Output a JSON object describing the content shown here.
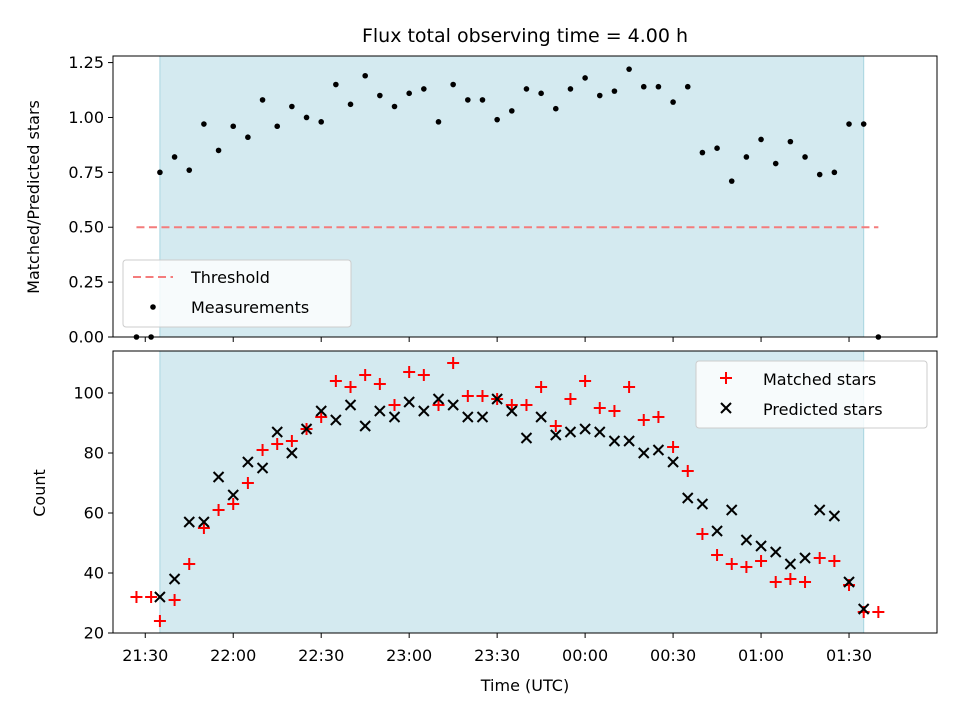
{
  "chart_data": [
    {
      "type": "scatter",
      "title": "Flux total observing time = 4.00 h",
      "xlabel": "",
      "ylabel": "Matched/Predicted stars",
      "x_type": "time (UTC)",
      "xlim": [
        "21:19",
        "02:00"
      ],
      "ylim": [
        0,
        1.28
      ],
      "yticks": [
        0.0,
        0.25,
        0.5,
        0.75,
        1.0,
        1.25
      ],
      "ytick_labels": [
        "0.00",
        "0.25",
        "0.50",
        "0.75",
        "1.00",
        "1.25"
      ],
      "shaded_interval": [
        "21:35",
        "01:35"
      ],
      "shade_color": "#d4eaf0",
      "grid": false,
      "legend_position": "lower-left",
      "threshold": {
        "name": "Threshold",
        "value": 0.5,
        "x_range": [
          "21:27",
          "01:40"
        ],
        "color": "#f47c7c",
        "style": "dashed"
      },
      "series": [
        {
          "name": "Measurements",
          "marker": "dot",
          "color": "#000000",
          "x": [
            "21:27",
            "21:32",
            "21:35",
            "21:40",
            "21:45",
            "21:50",
            "21:55",
            "22:00",
            "22:05",
            "22:10",
            "22:15",
            "22:20",
            "22:25",
            "22:30",
            "22:35",
            "22:40",
            "22:45",
            "22:50",
            "22:55",
            "23:00",
            "23:05",
            "23:10",
            "23:15",
            "23:20",
            "23:25",
            "23:30",
            "23:35",
            "23:40",
            "23:45",
            "23:50",
            "23:55",
            "00:00",
            "00:05",
            "00:10",
            "00:15",
            "00:20",
            "00:25",
            "00:30",
            "00:35",
            "00:40",
            "00:45",
            "00:50",
            "00:55",
            "01:00",
            "01:05",
            "01:10",
            "01:15",
            "01:20",
            "01:25",
            "01:30",
            "01:35",
            "01:40"
          ],
          "y": [
            0.0,
            0.0,
            0.75,
            0.82,
            0.76,
            0.97,
            0.85,
            0.96,
            0.91,
            1.08,
            0.96,
            1.05,
            1.0,
            0.98,
            1.15,
            1.06,
            1.19,
            1.1,
            1.05,
            1.11,
            1.13,
            0.98,
            1.15,
            1.08,
            1.08,
            0.99,
            1.03,
            1.13,
            1.11,
            1.04,
            1.13,
            1.18,
            1.1,
            1.12,
            1.22,
            1.14,
            1.14,
            1.07,
            1.14,
            0.84,
            0.86,
            0.71,
            0.82,
            0.9,
            0.79,
            0.89,
            0.82,
            0.74,
            0.75,
            0.97,
            0.97,
            0.0
          ]
        }
      ]
    },
    {
      "type": "scatter",
      "title": "",
      "xlabel": "Time (UTC)",
      "ylabel": "Count",
      "x_type": "time (UTC)",
      "xlim": [
        "21:19",
        "02:00"
      ],
      "ylim": [
        20,
        114
      ],
      "yticks": [
        20,
        40,
        60,
        80,
        100
      ],
      "xticks": [
        "21:30",
        "22:00",
        "22:30",
        "23:00",
        "23:30",
        "00:00",
        "00:30",
        "01:00",
        "01:30"
      ],
      "shaded_interval": [
        "21:35",
        "01:35"
      ],
      "shade_color": "#d4eaf0",
      "grid": false,
      "legend_position": "top-right",
      "series": [
        {
          "name": "Matched stars",
          "marker": "plus",
          "color": "#ff0000",
          "x": [
            "21:27",
            "21:32",
            "21:35",
            "21:40",
            "21:45",
            "21:50",
            "21:55",
            "22:00",
            "22:05",
            "22:10",
            "22:15",
            "22:20",
            "22:25",
            "22:30",
            "22:35",
            "22:40",
            "22:45",
            "22:50",
            "22:55",
            "23:00",
            "23:05",
            "23:10",
            "23:15",
            "23:20",
            "23:25",
            "23:30",
            "23:35",
            "23:40",
            "23:45",
            "23:50",
            "23:55",
            "00:00",
            "00:05",
            "00:10",
            "00:15",
            "00:20",
            "00:25",
            "00:30",
            "00:35",
            "00:40",
            "00:45",
            "00:50",
            "00:55",
            "01:00",
            "01:05",
            "01:10",
            "01:15",
            "01:20",
            "01:25",
            "01:30",
            "01:35",
            "01:40"
          ],
          "y": [
            32,
            32,
            24,
            31,
            43,
            55,
            61,
            63,
            70,
            81,
            83,
            84,
            88,
            92,
            104,
            102,
            106,
            103,
            96,
            107,
            106,
            96,
            110,
            99,
            99,
            98,
            96,
            96,
            102,
            89,
            98,
            104,
            95,
            94,
            102,
            91,
            92,
            82,
            74,
            53,
            46,
            43,
            42,
            44,
            37,
            38,
            37,
            45,
            44,
            36,
            27,
            27
          ]
        },
        {
          "name": "Predicted stars",
          "marker": "x",
          "color": "#000000",
          "x": [
            "21:35",
            "21:40",
            "21:45",
            "21:50",
            "21:55",
            "22:00",
            "22:05",
            "22:10",
            "22:15",
            "22:20",
            "22:25",
            "22:30",
            "22:35",
            "22:40",
            "22:45",
            "22:50",
            "22:55",
            "23:00",
            "23:05",
            "23:10",
            "23:15",
            "23:20",
            "23:25",
            "23:30",
            "23:35",
            "23:40",
            "23:45",
            "23:50",
            "23:55",
            "00:00",
            "00:05",
            "00:10",
            "00:15",
            "00:20",
            "00:25",
            "00:30",
            "00:35",
            "00:40",
            "00:45",
            "00:50",
            "00:55",
            "01:00",
            "01:05",
            "01:10",
            "01:15",
            "01:20",
            "01:25",
            "01:30",
            "01:35"
          ],
          "y": [
            32,
            38,
            57,
            57,
            72,
            66,
            77,
            75,
            87,
            80,
            88,
            94,
            91,
            96,
            89,
            94,
            92,
            97,
            94,
            98,
            96,
            92,
            92,
            98,
            94,
            85,
            92,
            86,
            87,
            88,
            87,
            84,
            84,
            80,
            81,
            77,
            65,
            63,
            54,
            61,
            51,
            49,
            47,
            43,
            45,
            61,
            59,
            37,
            28
          ]
        }
      ]
    }
  ]
}
